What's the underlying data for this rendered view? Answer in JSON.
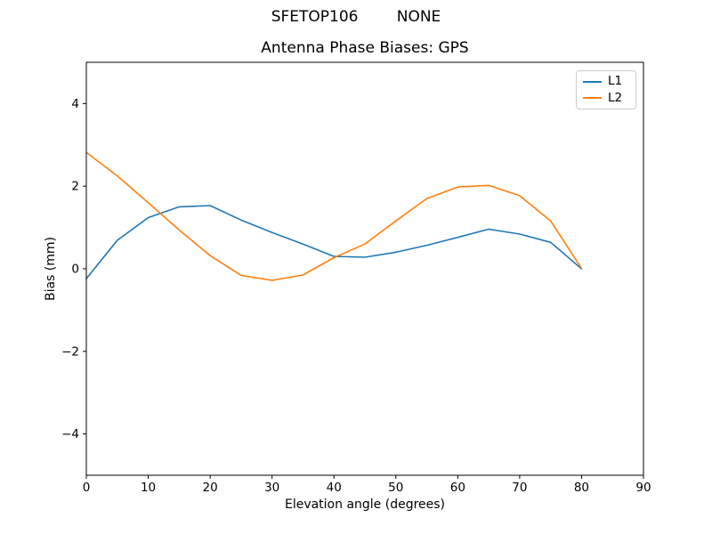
{
  "header": {
    "suptitle": "SFETOP106        NONE"
  },
  "chart_data": {
    "type": "line",
    "title": "Antenna Phase Biases: GPS",
    "xlabel": "Elevation angle (degrees)",
    "ylabel": "Bias (mm)",
    "xlim": [
      0,
      90
    ],
    "ylim": [
      -5,
      5
    ],
    "xticks": [
      0,
      10,
      20,
      30,
      40,
      50,
      60,
      70,
      80,
      90
    ],
    "yticks": [
      -4,
      -2,
      0,
      2,
      4
    ],
    "grid": false,
    "legend_position": "upper right",
    "x": [
      0,
      5,
      10,
      15,
      20,
      25,
      30,
      35,
      40,
      45,
      50,
      55,
      60,
      65,
      70,
      75,
      80
    ],
    "series": [
      {
        "name": "L1",
        "color": "#1f77b4",
        "values": [
          -0.24,
          0.69,
          1.24,
          1.5,
          1.53,
          1.18,
          0.88,
          0.6,
          0.3,
          0.28,
          0.4,
          0.57,
          0.76,
          0.96,
          0.84,
          0.64,
          0.0
        ]
      },
      {
        "name": "L2",
        "color": "#ff7f0e",
        "values": [
          2.82,
          2.25,
          1.6,
          0.94,
          0.32,
          -0.16,
          -0.28,
          -0.15,
          0.27,
          0.6,
          1.16,
          1.7,
          1.98,
          2.02,
          1.77,
          1.16,
          0.01
        ]
      }
    ]
  }
}
